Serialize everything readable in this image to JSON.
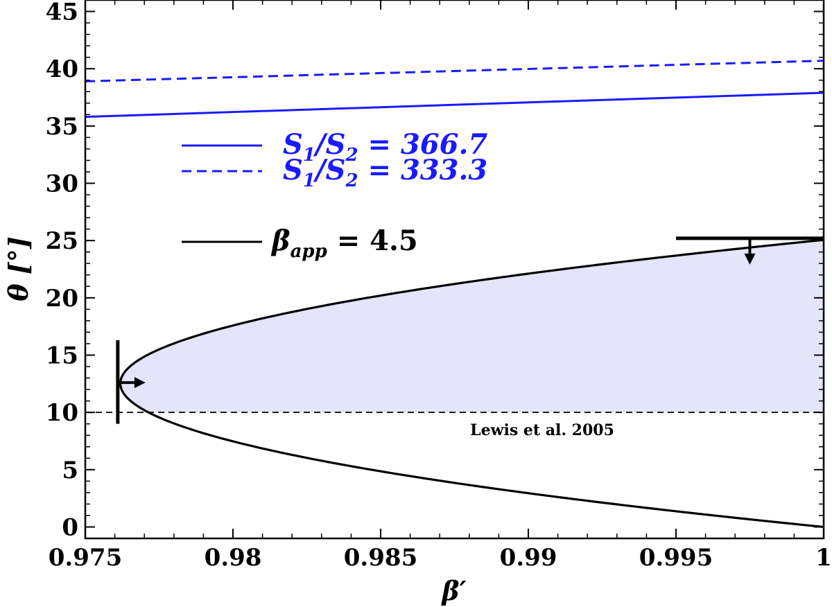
{
  "chart_data": {
    "type": "line",
    "title": "",
    "xlabel": "β′",
    "ylabel": "θ [°]",
    "xlim": [
      0.975,
      1.0
    ],
    "ylim": [
      -1,
      46
    ],
    "xticks": [
      0.975,
      0.98,
      0.985,
      0.99,
      0.995,
      1
    ],
    "xtick_labels": [
      "0.975",
      "0.98",
      "0.985",
      "0.99",
      "0.995",
      "1"
    ],
    "yticks": [
      0,
      5,
      10,
      15,
      20,
      25,
      30,
      35,
      40,
      45
    ],
    "ytick_labels": [
      "0",
      "5",
      "10",
      "15",
      "20",
      "25",
      "30",
      "35",
      "40",
      "45"
    ],
    "grid": false,
    "legend_position": "center-left",
    "series": [
      {
        "name": "S1/S2 = 366.7",
        "label_main": "S",
        "label_sub1": "1",
        "label_mid": "/S",
        "label_sub2": "2",
        "label_value": " = 366.7",
        "color": "#1a1aff",
        "style": "solid",
        "x": [
          0.975,
          1.0
        ],
        "y": [
          35.8,
          37.9
        ]
      },
      {
        "name": "S1/S2 = 333.3",
        "label_main": "S",
        "label_sub1": "1",
        "label_mid": "/S",
        "label_sub2": "2",
        "label_value": " = 333.3",
        "color": "#1a1aff",
        "style": "dashed",
        "x": [
          0.975,
          1.0
        ],
        "y": [
          38.9,
          40.7
        ]
      },
      {
        "name": "βapp = 4.5",
        "label_main": "β",
        "label_sub1": "app",
        "label_value": " = 4.5",
        "color": "#000000",
        "style": "solid",
        "beta_app": 4.5
      }
    ],
    "reference_line": {
      "y": 10,
      "style": "dashed",
      "label": "Lewis et al. 2005"
    },
    "shaded_region": {
      "color": "#e4e4fb",
      "description": "inside βapp curve, θ ≥ 10"
    },
    "limits": [
      {
        "type": "lower-limit",
        "x": 0.9761,
        "y": 12.6,
        "direction": "right"
      },
      {
        "type": "upper-limit",
        "x": 0.9975,
        "y": 25.2,
        "direction": "down"
      }
    ]
  },
  "colors": {
    "blue": "#1a1aff",
    "fill": "#e4e4fb",
    "black": "#000000"
  }
}
